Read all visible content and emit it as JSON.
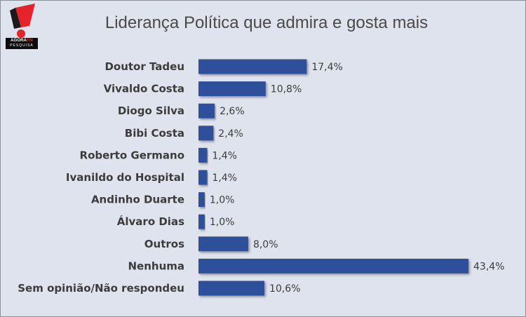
{
  "logo": {
    "brand_prefix": "AGORA",
    "brand_suffix": "RN",
    "tagline": "PESQUISA",
    "icon": "exclamation-mark-icon",
    "colors": {
      "mark": "#e4232b",
      "band": "#0c0c0c"
    }
  },
  "chart_data": {
    "type": "bar",
    "orientation": "horizontal",
    "title": "Liderança Política que admira e gosta mais",
    "categories": [
      "Doutor Tadeu",
      "Vivaldo Costa",
      "Diogo Silva",
      "Bibi Costa",
      "Roberto Germano",
      "Ivanildo do Hospital",
      "Andinho Duarte",
      "Álvaro Dias",
      "Outros",
      "Nenhuma",
      "Sem opinião/Não respondeu"
    ],
    "values": [
      17.4,
      10.8,
      2.6,
      2.4,
      1.4,
      1.4,
      1.0,
      1.0,
      8.0,
      43.4,
      10.6
    ],
    "value_labels": [
      "17,4%",
      "10,8%",
      "2,6%",
      "2,4%",
      "1,4%",
      "1,4%",
      "1,0%",
      "1,0%",
      "8,0%",
      "43,4%",
      "10,6%"
    ],
    "unit": "%",
    "xlim": [
      0,
      43.4
    ],
    "grid": false,
    "legend": "none",
    "colors": {
      "bar": "#2f4f9a",
      "background": "#dfe3ee",
      "text": "#3c3c3c"
    }
  }
}
